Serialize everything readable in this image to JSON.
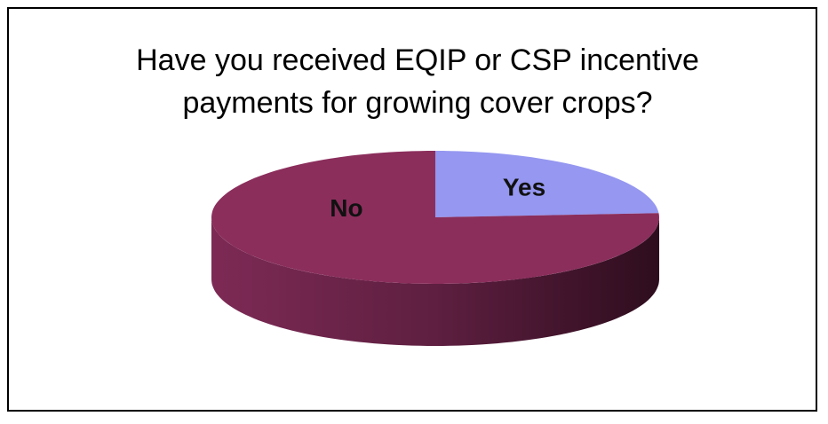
{
  "chart_data": {
    "type": "pie",
    "title": "Have you received EQIP or CSP incentive payments for growing cover crops?",
    "categories": [
      "Yes",
      "No"
    ],
    "values": [
      24,
      76
    ],
    "colors": [
      "#9597f0",
      "#8b2e5c"
    ]
  }
}
